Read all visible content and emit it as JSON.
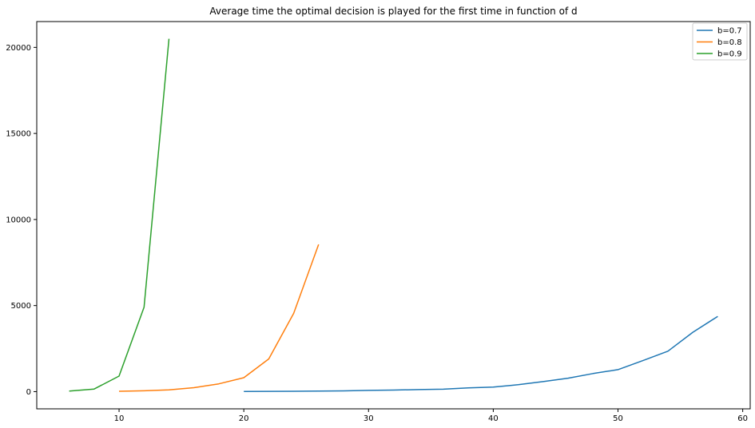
{
  "chart_data": {
    "type": "line",
    "title": "Average time the optimal decision is played for the first time in function of d",
    "xlabel": "",
    "ylabel": "",
    "xlim": [
      3.4,
      60.6
    ],
    "ylim": [
      -1000,
      21500
    ],
    "xticks": [
      10,
      20,
      30,
      40,
      50,
      60
    ],
    "yticks": [
      0,
      5000,
      10000,
      15000,
      20000
    ],
    "grid": false,
    "legend_position": "top-right",
    "series": [
      {
        "name": "b=0.7",
        "color": "#1f77b4",
        "x": [
          20,
          22,
          24,
          26,
          28,
          30,
          32,
          34,
          36,
          38,
          40,
          42,
          44,
          46,
          48,
          50,
          52,
          54,
          56,
          58
        ],
        "y": [
          10,
          15,
          20,
          30,
          45,
          70,
          90,
          120,
          140,
          220,
          260,
          400,
          580,
          780,
          1050,
          1280,
          1800,
          2350,
          3450,
          4370
        ]
      },
      {
        "name": "b=0.8",
        "color": "#ff7f0e",
        "x": [
          10,
          12,
          14,
          16,
          18,
          20,
          22,
          24,
          26
        ],
        "y": [
          20,
          50,
          100,
          230,
          450,
          810,
          1900,
          4550,
          8550
        ]
      },
      {
        "name": "b=0.9",
        "color": "#2ca02c",
        "x": [
          6,
          8,
          10,
          12,
          14
        ],
        "y": [
          30,
          150,
          900,
          4900,
          20500
        ]
      }
    ]
  }
}
